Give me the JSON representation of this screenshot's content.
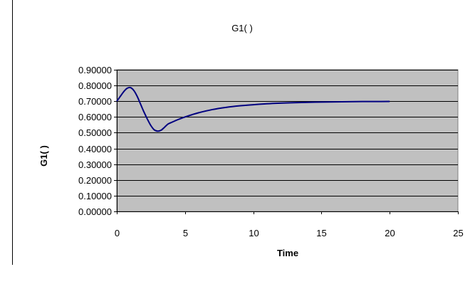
{
  "chart_data": {
    "type": "line",
    "title": "G1( )",
    "xlabel": "Time",
    "ylabel": "G1( )",
    "xlim": [
      0,
      25
    ],
    "ylim": [
      0,
      0.9
    ],
    "x_ticks": [
      "0",
      "5",
      "10",
      "15",
      "20",
      "25"
    ],
    "y_ticks": [
      "0.00000",
      "0.10000",
      "0.20000",
      "0.30000",
      "0.40000",
      "0.50000",
      "0.60000",
      "0.70000",
      "0.80000",
      "0.90000"
    ],
    "grid": "horizontal",
    "legend": "none",
    "colors": {
      "plot_background": "#c0c0c0",
      "line": "#000080",
      "grid": "#000000"
    },
    "series": [
      {
        "x": [
          0,
          0.25,
          0.5,
          0.75,
          1.0,
          1.25,
          1.5,
          1.75,
          2.0,
          2.25,
          2.5,
          2.75,
          3.0,
          3.25,
          3.5,
          3.75,
          4.0,
          4.5,
          5.0,
          5.5,
          6.0,
          7.0,
          8.0,
          9.0,
          10.0,
          11.0,
          12.0,
          13.0,
          14.0,
          15.0,
          16.0,
          17.0,
          18.0,
          19.0,
          20.0
        ],
        "values": [
          0.7,
          0.73,
          0.76,
          0.782,
          0.787,
          0.768,
          0.73,
          0.68,
          0.63,
          0.585,
          0.545,
          0.518,
          0.51,
          0.516,
          0.535,
          0.555,
          0.565,
          0.584,
          0.6,
          0.614,
          0.627,
          0.647,
          0.661,
          0.671,
          0.678,
          0.684,
          0.688,
          0.691,
          0.693,
          0.695,
          0.696,
          0.697,
          0.698,
          0.698,
          0.699
        ]
      }
    ]
  }
}
